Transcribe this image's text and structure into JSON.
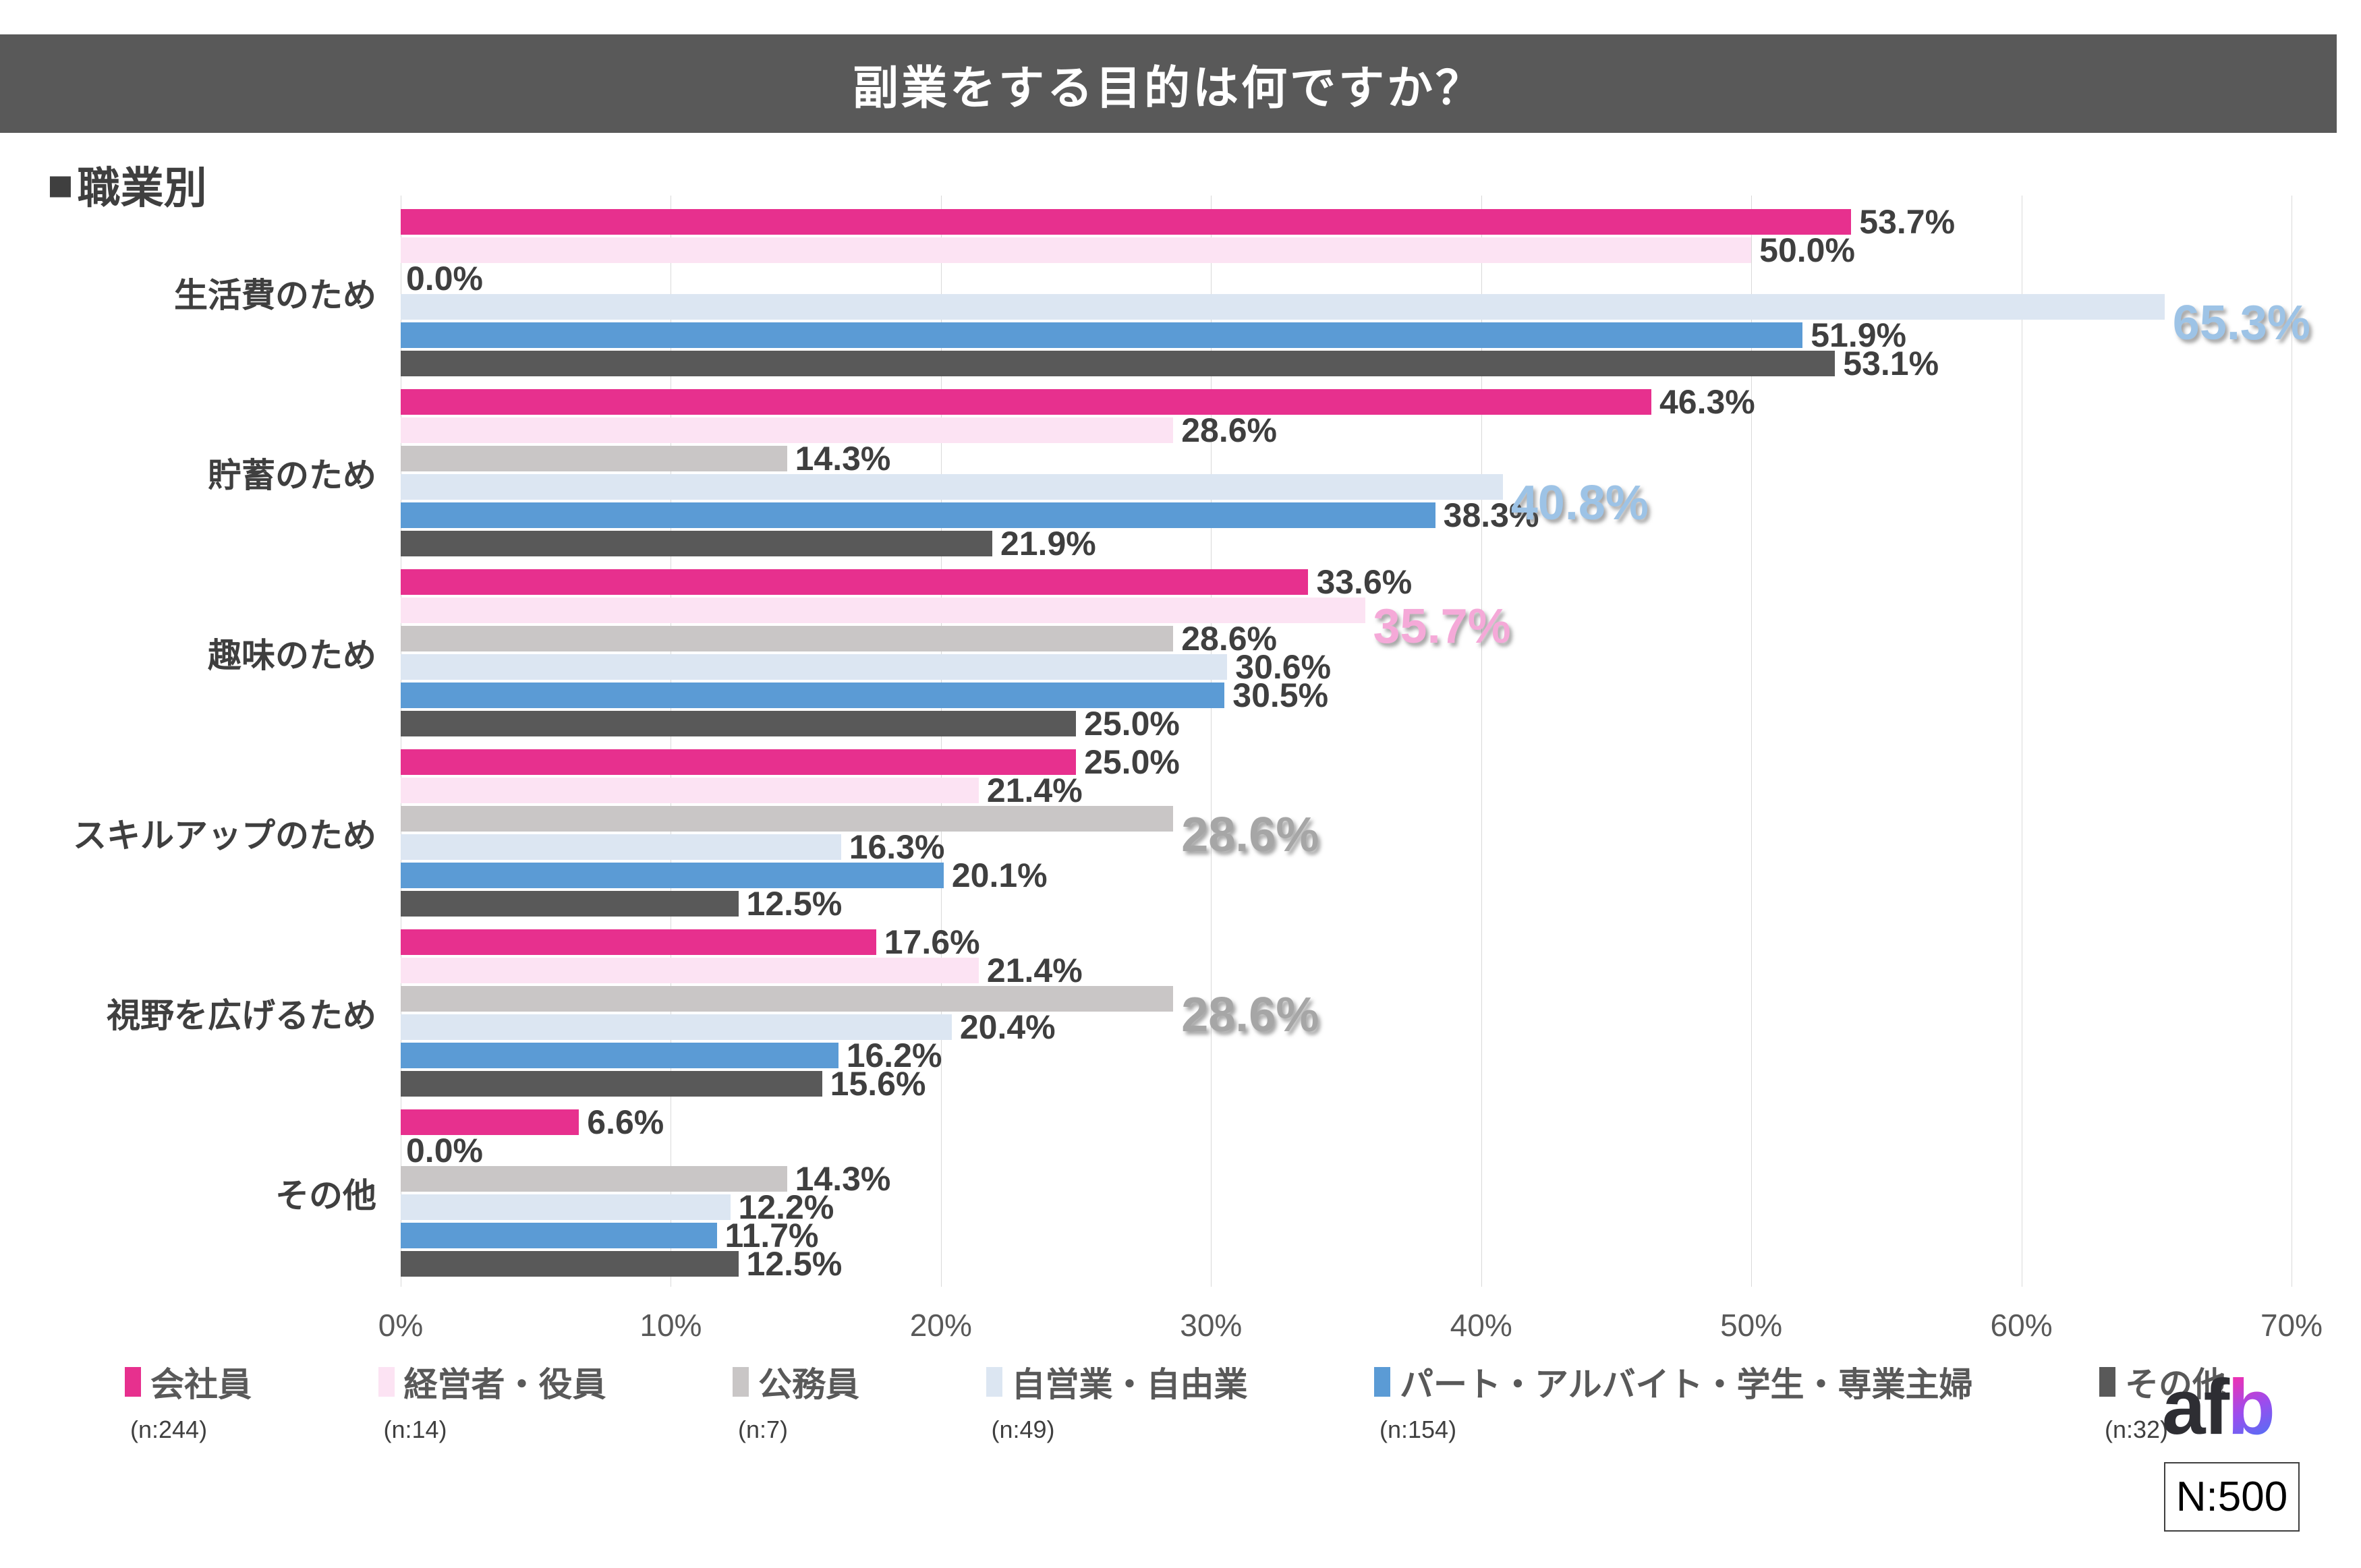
{
  "title": "副業をする目的は何ですか？",
  "section": {
    "marker": "■",
    "text": "職業別"
  },
  "chart_data": {
    "type": "bar",
    "orientation": "horizontal",
    "title": "副業をする目的は何ですか？",
    "subtitle": "職業別",
    "x_axis": {
      "min": 0,
      "max": 70,
      "tick_step": 10,
      "tick_labels": [
        "0%",
        "10%",
        "20%",
        "30%",
        "40%",
        "50%",
        "60%",
        "70%"
      ]
    },
    "grid": true,
    "value_suffix": "%",
    "legend_position": "bottom",
    "categories": [
      "生活費のため",
      "貯蓄のため",
      "趣味のため",
      "スキルアップのため",
      "視野を広げるため",
      "その他"
    ],
    "series": [
      {
        "key": "kaishain",
        "name": "会社員",
        "n_label": "(n:244)",
        "color": "#E7308E",
        "values": [
          53.7,
          46.3,
          33.6,
          25.0,
          17.6,
          6.6
        ]
      },
      {
        "key": "keieisha-yakuin",
        "name": "経営者・役員",
        "n_label": "(n:14)",
        "color": "#FCE3F3",
        "highlight_color": "#F5A9D8",
        "values": [
          50.0,
          28.6,
          35.7,
          21.4,
          21.4,
          0.0
        ]
      },
      {
        "key": "komuin",
        "name": "公務員",
        "n_label": "(n:7)",
        "color": "#C9C6C6",
        "highlight_color": "#A6A6A6",
        "values": [
          0.0,
          14.3,
          28.6,
          28.6,
          28.6,
          14.3
        ]
      },
      {
        "key": "jieigyo-jiyugyo",
        "name": "自営業・自由業",
        "n_label": "(n:49)",
        "color": "#DCE6F2",
        "highlight_color": "#9DC3E6",
        "values": [
          65.3,
          40.8,
          30.6,
          16.3,
          20.4,
          12.2
        ]
      },
      {
        "key": "part-arbeit-gakusei-shufu",
        "name": "パート・アルバイト・学生・専業主婦",
        "n_label": "(n:154)",
        "color": "#5B9BD5",
        "values": [
          51.9,
          38.3,
          30.5,
          20.1,
          16.2,
          11.7
        ]
      },
      {
        "key": "sonota",
        "name": "その他",
        "n_label": "(n:32)",
        "color": "#595959",
        "values": [
          53.1,
          21.9,
          25.0,
          12.5,
          15.6,
          12.5
        ]
      }
    ],
    "highlighted_labels": [
      {
        "category": 0,
        "series": 3,
        "value": 65.3
      },
      {
        "category": 1,
        "series": 3,
        "value": 40.8
      },
      {
        "category": 2,
        "series": 1,
        "value": 35.7
      },
      {
        "category": 3,
        "series": 2,
        "value": 28.6
      },
      {
        "category": 4,
        "series": 2,
        "value": 28.6
      }
    ]
  },
  "footer": {
    "logo_af": "af",
    "logo_b": "b",
    "sample_size": "N:500"
  },
  "colors": {
    "header_bg": "#595959",
    "grid": "#D9D9D9",
    "value_label": "#3F3F3F",
    "axis_label": "#595959",
    "legend_label": "#595959"
  }
}
